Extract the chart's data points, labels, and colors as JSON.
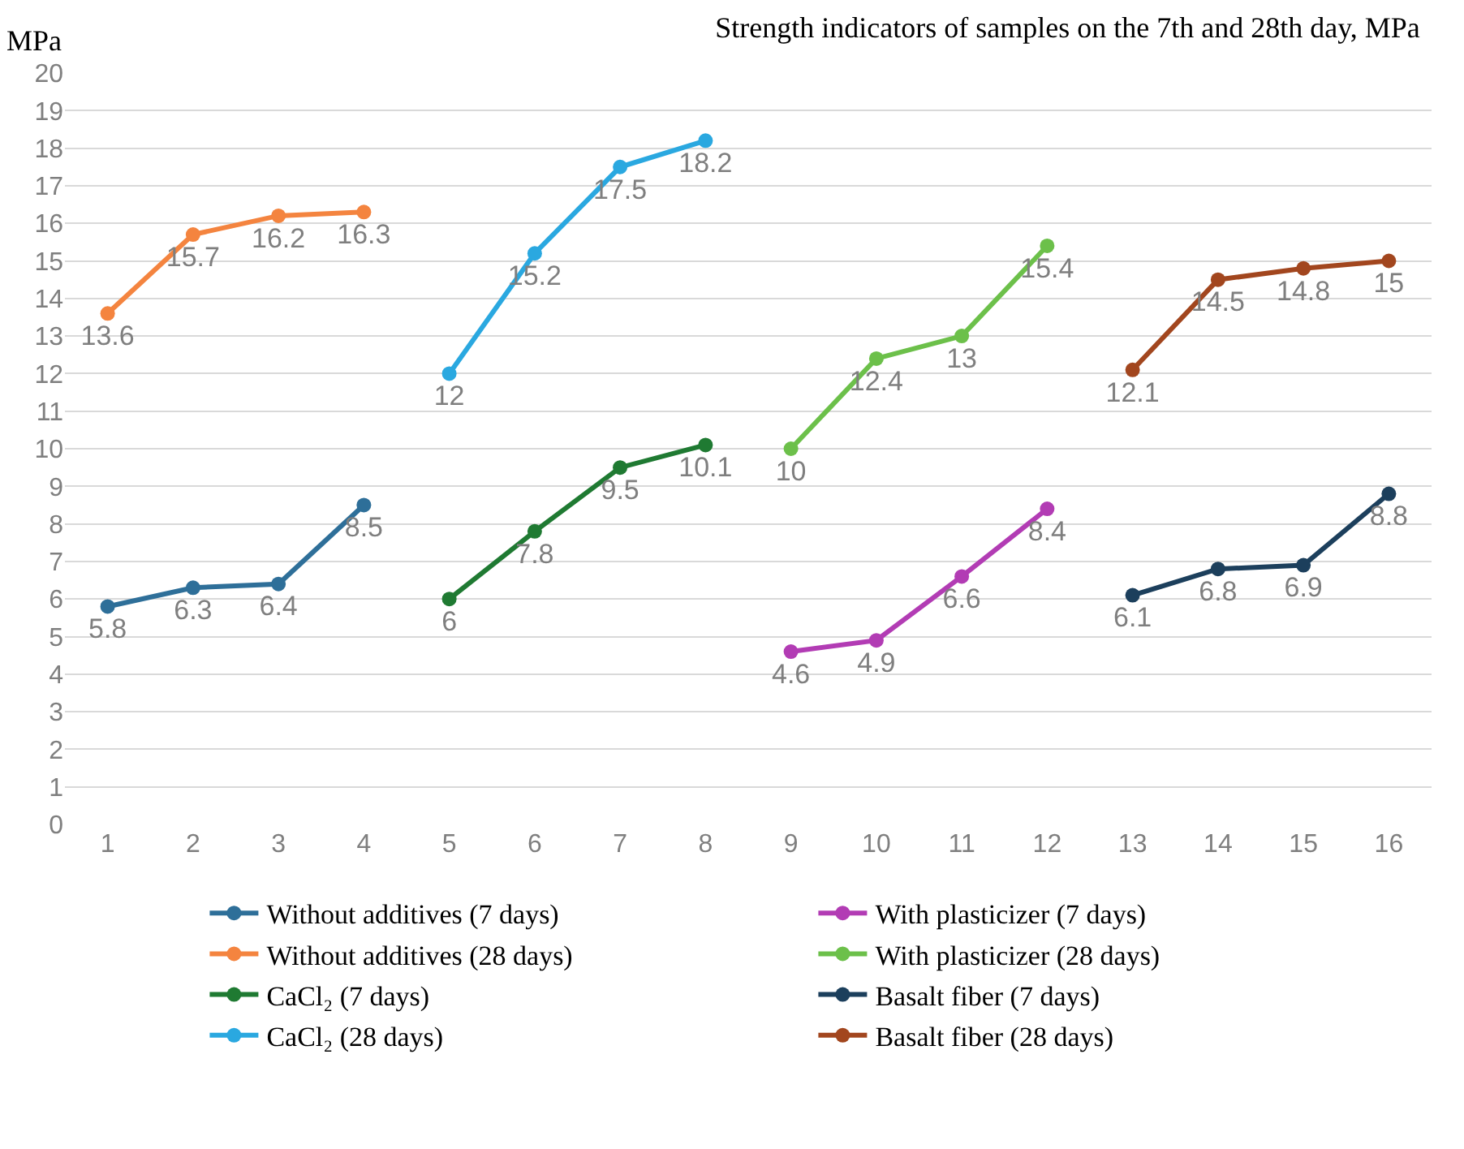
{
  "chart_data": {
    "type": "line",
    "title": "Strength indicators of samples on the 7th and 28th day, MPa",
    "ylabel": "MPa",
    "xlim": [
      0.5,
      16.5
    ],
    "xticks": [
      1,
      2,
      3,
      4,
      5,
      6,
      7,
      8,
      9,
      10,
      11,
      12,
      13,
      14,
      15,
      16
    ],
    "ylim": [
      0,
      20
    ],
    "yticks": [
      0,
      1,
      2,
      3,
      4,
      5,
      6,
      7,
      8,
      9,
      10,
      11,
      12,
      13,
      14,
      15,
      16,
      17,
      18,
      19,
      20
    ],
    "grid": "y",
    "legend": "bottom",
    "marker": "circle",
    "line_style": "solid",
    "data_labels": true,
    "series": [
      {
        "name": "Without additives (7 days)",
        "color": "#2e6f99",
        "x": [
          1,
          2,
          3,
          4
        ],
        "values": [
          5.8,
          6.3,
          6.4,
          8.5
        ]
      },
      {
        "name": "Without additives (28 days)",
        "color": "#f4843f",
        "x": [
          1,
          2,
          3,
          4
        ],
        "values": [
          13.6,
          15.7,
          16.2,
          16.3
        ]
      },
      {
        "name": "CaCl₂ (7 days)",
        "color": "#1f7a32",
        "x": [
          5,
          6,
          7,
          8
        ],
        "values": [
          6,
          7.8,
          9.5,
          10.1
        ]
      },
      {
        "name": "CaCl₂ (28 days)",
        "color": "#2aa8e0",
        "x": [
          5,
          6,
          7,
          8
        ],
        "values": [
          12,
          15.2,
          17.5,
          18.2
        ]
      },
      {
        "name": "With plasticizer (7 days)",
        "color": "#b23cb4",
        "x": [
          9,
          10,
          11,
          12
        ],
        "values": [
          4.6,
          4.9,
          6.6,
          8.4
        ]
      },
      {
        "name": "With plasticizer (28 days)",
        "color": "#6cc04a",
        "x": [
          9,
          10,
          11,
          12
        ],
        "values": [
          10,
          12.4,
          13,
          15.4
        ]
      },
      {
        "name": "Basalt fiber (7 days)",
        "color": "#1c3f5c",
        "x": [
          13,
          14,
          15,
          16
        ],
        "values": [
          6.1,
          6.8,
          6.9,
          8.8
        ]
      },
      {
        "name": "Basalt fiber (28 days)",
        "color": "#a2461e",
        "x": [
          13,
          14,
          15,
          16
        ],
        "values": [
          12.1,
          14.5,
          14.8,
          15
        ]
      }
    ]
  }
}
